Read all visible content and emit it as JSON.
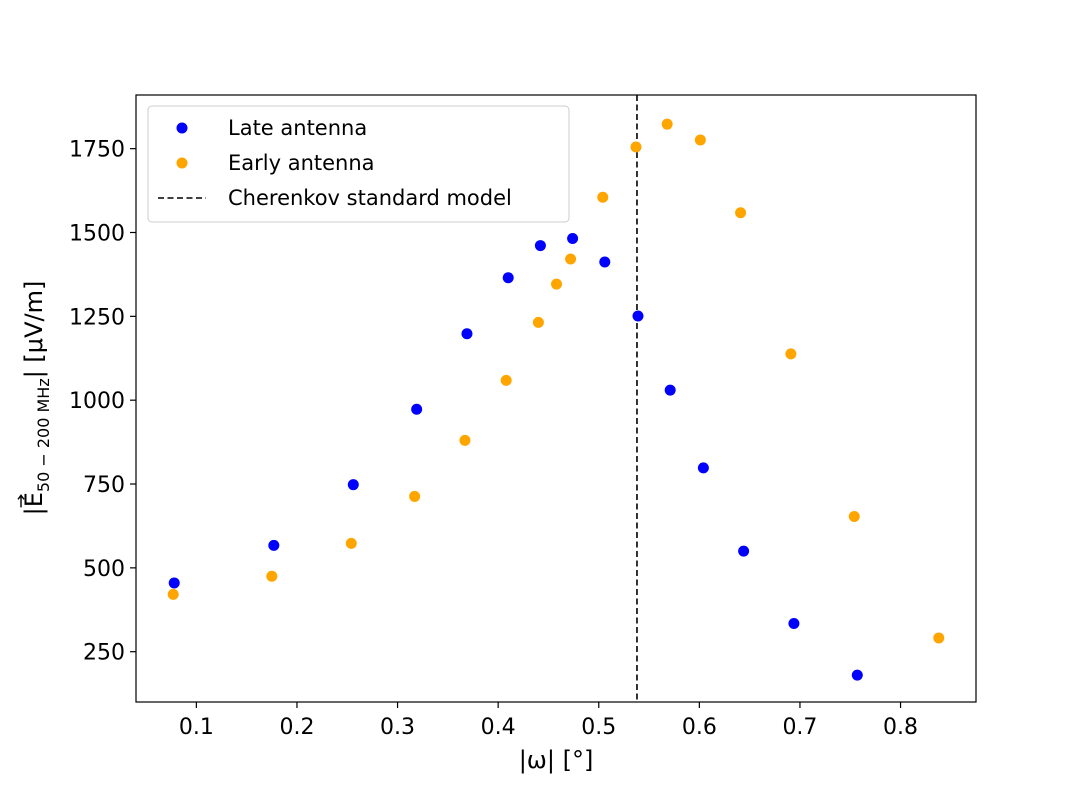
{
  "chart_data": {
    "type": "scatter",
    "title": "",
    "xlabel": "|ω| [°]",
    "ylabel_main": "|E",
    "ylabel_sub": "50 − 200 MHz",
    "ylabel_tail": "| [μV/m]",
    "xlim": [
      0.04,
      0.875
    ],
    "ylim": [
      100,
      1910
    ],
    "xticks": [
      0.1,
      0.2,
      0.3,
      0.4,
      0.5,
      0.6,
      0.7,
      0.8
    ],
    "xtick_labels": [
      "0.1",
      "0.2",
      "0.3",
      "0.4",
      "0.5",
      "0.6",
      "0.7",
      "0.8"
    ],
    "yticks": [
      250,
      500,
      750,
      1000,
      1250,
      1500,
      1750
    ],
    "ytick_labels": [
      "250",
      "500",
      "750",
      "1000",
      "1250",
      "1500",
      "1750"
    ],
    "grid": false,
    "legend_position": "top-left",
    "series": [
      {
        "name": "Late antenna",
        "color": "#0000ff",
        "x": [
          0.078,
          0.177,
          0.256,
          0.319,
          0.369,
          0.41,
          0.442,
          0.474,
          0.506,
          0.539,
          0.571,
          0.604,
          0.644,
          0.694,
          0.757
        ],
        "y": [
          455,
          567,
          748,
          973,
          1198,
          1365,
          1461,
          1482,
          1412,
          1251,
          1030,
          798,
          550,
          334,
          180
        ]
      },
      {
        "name": "Early antenna",
        "color": "#ffa500",
        "x": [
          0.077,
          0.175,
          0.254,
          0.317,
          0.367,
          0.408,
          0.44,
          0.458,
          0.472,
          0.504,
          0.537,
          0.568,
          0.601,
          0.641,
          0.691,
          0.754,
          0.838
        ],
        "y": [
          421,
          475,
          573,
          713,
          880,
          1059,
          1232,
          1346,
          1421,
          1605,
          1755,
          1823,
          1776,
          1559,
          1138,
          653,
          291
        ]
      }
    ],
    "vlines": [
      {
        "name": "Cherenkov standard model",
        "x": 0.538,
        "color": "#000000",
        "style": "dashed"
      }
    ],
    "legend": [
      "Late antenna",
      "Early antenna",
      "Cherenkov standard model"
    ]
  }
}
